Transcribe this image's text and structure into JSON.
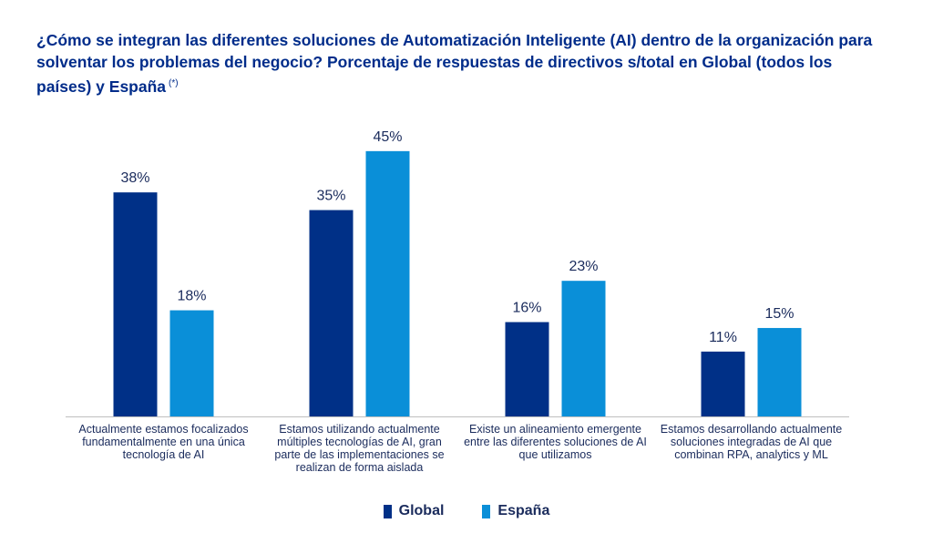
{
  "title": "¿Cómo se integran las diferentes soluciones de Automatización Inteligente (AI) dentro de la organización para solventar los problemas del negocio? Porcentaje de respuestas de directivos s/total en Global (todos los países) y España",
  "title_note": "(*)",
  "colors": {
    "Global": "#003087",
    "España": "#0a8fd8",
    "label": "#1a2b5c",
    "title": "#002c8a",
    "axis": "#bfbfbf"
  },
  "chart_data": {
    "type": "bar",
    "categories": [
      "Actualmente estamos focalizados fundamentalmente en una única tecnología de AI",
      "Estamos utilizando actualmente múltiples tecnologías de AI, gran parte de las implementaciones se realizan de forma aislada",
      "Existe un alineamiento emergente entre las diferentes soluciones de AI que utilizamos",
      "Estamos desarrollando actualmente soluciones integradas de AI que combinan RPA, analytics y ML"
    ],
    "series": [
      {
        "name": "Global",
        "values": [
          38,
          35,
          16,
          11
        ]
      },
      {
        "name": "España",
        "values": [
          18,
          45,
          23,
          15
        ]
      }
    ],
    "data_labels": [
      [
        "38%",
        "35%",
        "16%",
        "11%"
      ],
      [
        "18%",
        "45%",
        "23%",
        "15%"
      ]
    ],
    "ylim": [
      0,
      50
    ],
    "grid": false,
    "legend": "bottom-center"
  }
}
